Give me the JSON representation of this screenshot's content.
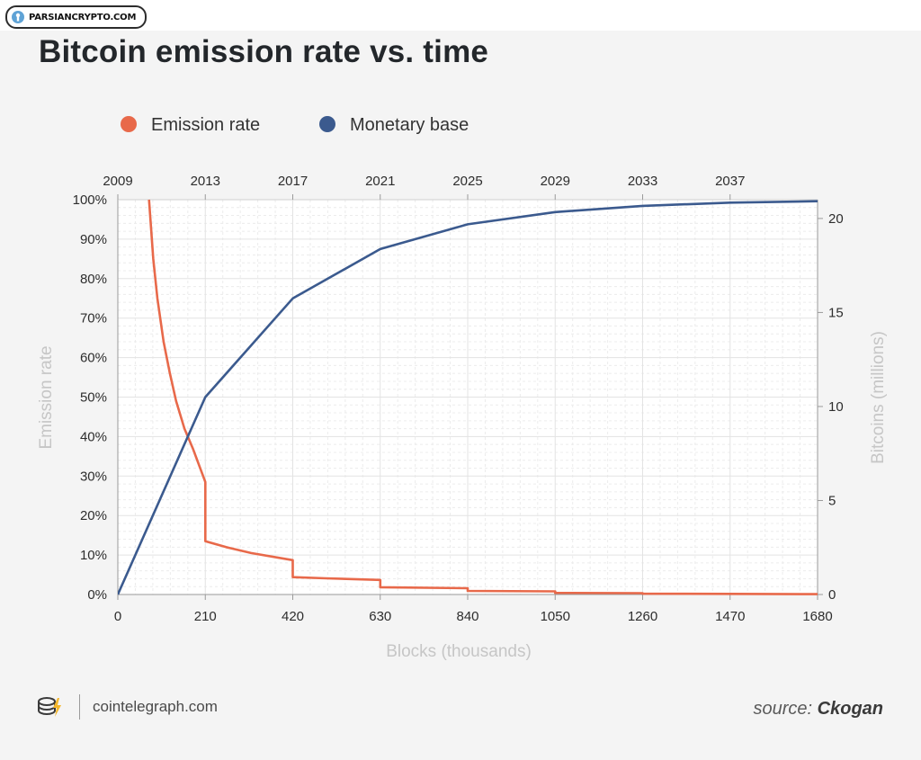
{
  "watermark": {
    "text": "PARSIANCRYPTO.COM"
  },
  "title": "Bitcoin emission rate vs. time",
  "footer": {
    "site": "cointelegraph.com",
    "source_prefix": "source:",
    "source_name": "Ckogan"
  },
  "colors": {
    "emission": "#e8694a",
    "monetary": "#3b5a8e",
    "grid": "#e3e3e3",
    "axis_text": "#2d2d2d",
    "axis_title": "#c6c6c6"
  },
  "chart_data": {
    "type": "line",
    "title": "Bitcoin emission rate vs. time",
    "xlabel": "Blocks (thousands)",
    "ylabel_left": "Emission rate",
    "ylabel_right": "Bitcoins (millions)",
    "legend": [
      "Emission rate",
      "Monetary base"
    ],
    "legend_position": "top-left",
    "grid": true,
    "x_ticks": [
      0,
      210,
      420,
      630,
      840,
      1050,
      1260,
      1470,
      1680
    ],
    "x_top_ticks": [
      "2009",
      "2013",
      "2017",
      "2021",
      "2025",
      "2029",
      "2033",
      "2037"
    ],
    "x_top_positions": [
      0,
      210,
      420,
      630,
      840,
      1050,
      1260,
      1470
    ],
    "y_left_ticks": [
      "0%",
      "10%",
      "20%",
      "30%",
      "40%",
      "50%",
      "60%",
      "70%",
      "80%",
      "90%",
      "100%"
    ],
    "y_right_ticks": [
      "0",
      "5",
      "10",
      "15",
      "20"
    ],
    "xlim": [
      0,
      1680
    ],
    "ylim_left": [
      0,
      100
    ],
    "ylim_right": [
      0,
      21
    ],
    "series": [
      {
        "name": "Emission rate",
        "axis": "left",
        "points": [
          [
            75,
            100
          ],
          [
            85,
            85
          ],
          [
            95,
            75
          ],
          [
            110,
            64
          ],
          [
            125,
            56
          ],
          [
            140,
            49
          ],
          [
            160,
            42
          ],
          [
            180,
            37
          ],
          [
            210,
            28.5
          ],
          [
            210,
            13.5
          ],
          [
            260,
            12
          ],
          [
            320,
            10.5
          ],
          [
            420,
            8.7
          ],
          [
            420,
            4.4
          ],
          [
            500,
            4.1
          ],
          [
            630,
            3.7
          ],
          [
            630,
            1.85
          ],
          [
            840,
            1.6
          ],
          [
            840,
            0.9
          ],
          [
            1050,
            0.8
          ],
          [
            1050,
            0.4
          ],
          [
            1260,
            0.35
          ],
          [
            1260,
            0.2
          ],
          [
            1470,
            0.15
          ],
          [
            1680,
            0.08
          ]
        ]
      },
      {
        "name": "Monetary base",
        "axis": "right",
        "points": [
          [
            0,
            0
          ],
          [
            210,
            10.5
          ],
          [
            420,
            15.75
          ],
          [
            630,
            18.375
          ],
          [
            840,
            19.6875
          ],
          [
            1050,
            20.34
          ],
          [
            1260,
            20.67
          ],
          [
            1470,
            20.84
          ],
          [
            1680,
            20.92
          ]
        ]
      }
    ]
  }
}
